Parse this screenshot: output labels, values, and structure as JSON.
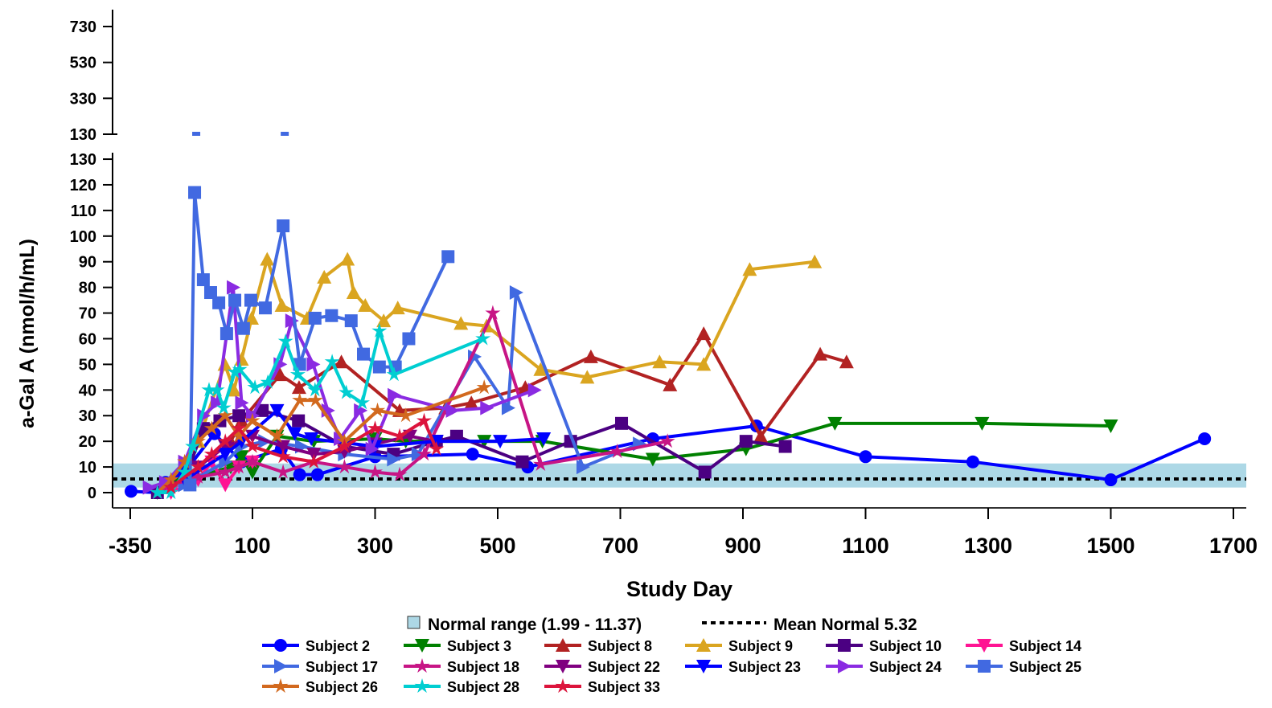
{
  "chart_data": {
    "type": "line",
    "xlabel": "Study Day",
    "ylabel": "a-Gal A (nmol/h/mL)",
    "x_ticks": [
      -350,
      100,
      300,
      500,
      700,
      900,
      1100,
      1300,
      1500,
      1700
    ],
    "y_ticks_lower": [
      0,
      10,
      20,
      30,
      40,
      50,
      60,
      70,
      80,
      90,
      100,
      110,
      120,
      130
    ],
    "y_ticks_upper": [
      130,
      330,
      530,
      730
    ],
    "ylim_lower": [
      0,
      130
    ],
    "ylim_upper": [
      130,
      730
    ],
    "x_axis_break": "between -350 and 100",
    "y_axis_break": "at 130",
    "grid": false,
    "legend_position": "bottom",
    "reference": {
      "normal_range": {
        "label": "Normal range (1.99 - 11.37)",
        "low": 1.99,
        "high": 11.37,
        "color": "#ADD8E6"
      },
      "mean_normal": {
        "label": "Mean Normal 5.32",
        "value": 5.32,
        "style": "dotted",
        "color": "#000000"
      }
    },
    "series": [
      {
        "name": "Subject 2",
        "color": "#0000FF",
        "marker": "circle",
        "points": [
          [
            -347,
            0.5
          ],
          [
            -250,
            0
          ],
          [
            -220,
            4
          ],
          [
            -150,
            8
          ],
          [
            -40,
            23
          ],
          [
            60,
            12
          ],
          [
            147,
            17
          ],
          [
            177,
            7
          ],
          [
            206,
            7
          ],
          [
            300,
            14
          ],
          [
            459,
            15
          ],
          [
            549,
            10
          ],
          [
            753,
            21
          ],
          [
            922,
            26
          ],
          [
            1100,
            14
          ],
          [
            1275,
            12
          ],
          [
            1500,
            5
          ],
          [
            1653,
            21
          ]
        ]
      },
      {
        "name": "Subject 3",
        "color": "#008000",
        "marker": "triangle-down",
        "points": [
          [
            -250,
            0
          ],
          [
            -200,
            3
          ],
          [
            20,
            10
          ],
          [
            60,
            14
          ],
          [
            100,
            8
          ],
          [
            140,
            22
          ],
          [
            200,
            20
          ],
          [
            300,
            21
          ],
          [
            350,
            20
          ],
          [
            478,
            20
          ],
          [
            573,
            20
          ],
          [
            753,
            13
          ],
          [
            905,
            17
          ],
          [
            1050,
            27
          ],
          [
            1290,
            27
          ],
          [
            1500,
            26
          ]
        ]
      },
      {
        "name": "Subject 8",
        "color": "#B22222",
        "marker": "triangle-up",
        "points": [
          [
            20,
            20
          ],
          [
            60,
            28
          ],
          [
            145,
            46
          ],
          [
            176,
            41
          ],
          [
            245,
            51
          ],
          [
            340,
            32
          ],
          [
            415,
            33
          ],
          [
            457,
            35
          ],
          [
            545,
            41
          ],
          [
            652,
            53
          ],
          [
            781,
            42
          ],
          [
            836,
            62
          ],
          [
            929,
            22
          ],
          [
            1026,
            54
          ],
          [
            1069,
            51
          ]
        ]
      },
      {
        "name": "Subject 9",
        "color": "#DAA520",
        "marker": "triangle-up",
        "points": [
          [
            -100,
            20
          ],
          [
            -2,
            50
          ],
          [
            32,
            40
          ],
          [
            60,
            52
          ],
          [
            97,
            68
          ],
          [
            124,
            91
          ],
          [
            148,
            73
          ],
          [
            189,
            68
          ],
          [
            217,
            84
          ],
          [
            255,
            91
          ],
          [
            265,
            78
          ],
          [
            284,
            73
          ],
          [
            314,
            67
          ],
          [
            337,
            72
          ],
          [
            440,
            66
          ],
          [
            482,
            65
          ],
          [
            570,
            48
          ],
          [
            646,
            45
          ],
          [
            764,
            51
          ],
          [
            836,
            50
          ],
          [
            911,
            87
          ],
          [
            1017,
            90
          ]
        ]
      },
      {
        "name": "Subject 10",
        "color": "#4B0082",
        "marker": "square",
        "points": [
          [
            -250,
            0
          ],
          [
            -150,
            5
          ],
          [
            -81,
            25
          ],
          [
            -20,
            28
          ],
          [
            50,
            30
          ],
          [
            116,
            32
          ],
          [
            175,
            28
          ],
          [
            250,
            18
          ],
          [
            330,
            15
          ],
          [
            400,
            20
          ],
          [
            433,
            22
          ],
          [
            540,
            12
          ],
          [
            619,
            20
          ],
          [
            702,
            27
          ],
          [
            838,
            8
          ],
          [
            905,
            20
          ],
          [
            969,
            18
          ]
        ]
      },
      {
        "name": "Subject 14",
        "color": "#FF1493",
        "marker": "triangle-down",
        "points": [
          [
            -200,
            0
          ],
          [
            -100,
            5
          ],
          [
            -50,
            12
          ],
          [
            0,
            3
          ],
          [
            50,
            10
          ],
          [
            100,
            12
          ]
        ]
      },
      {
        "name": "Subject 17",
        "color": "#4169E1",
        "marker": "triangle-right",
        "points": [
          [
            -150,
            3
          ],
          [
            0,
            12
          ],
          [
            60,
            18
          ],
          [
            120,
            20
          ],
          [
            180,
            18
          ],
          [
            250,
            15
          ],
          [
            330,
            13
          ],
          [
            370,
            15
          ],
          [
            462,
            53
          ],
          [
            517,
            33
          ],
          [
            530,
            78
          ],
          [
            639,
            10
          ],
          [
            731,
            19
          ]
        ]
      },
      {
        "name": "Subject 18",
        "color": "#C71585",
        "marker": "star",
        "points": [
          [
            -250,
            0
          ],
          [
            -200,
            3
          ],
          [
            -100,
            6
          ],
          [
            0,
            8
          ],
          [
            50,
            10
          ],
          [
            100,
            12
          ],
          [
            150,
            8
          ],
          [
            200,
            12
          ],
          [
            250,
            10
          ],
          [
            300,
            8
          ],
          [
            340,
            7
          ],
          [
            380,
            15
          ],
          [
            492,
            70
          ],
          [
            570,
            11
          ],
          [
            695,
            16
          ],
          [
            777,
            20
          ]
        ]
      },
      {
        "name": "Subject 22",
        "color": "#800080",
        "marker": "triangle-down",
        "points": [
          [
            -200,
            2
          ],
          [
            -100,
            10
          ],
          [
            0,
            18
          ],
          [
            100,
            22
          ],
          [
            150,
            18
          ],
          [
            200,
            15
          ],
          [
            250,
            16
          ],
          [
            300,
            19
          ],
          [
            357,
            22
          ],
          [
            400,
            20
          ]
        ]
      },
      {
        "name": "Subject 23",
        "color": "#0000FF",
        "marker": "triangle-down",
        "points": [
          [
            -150,
            5
          ],
          [
            0,
            15
          ],
          [
            60,
            20
          ],
          [
            140,
            32
          ],
          [
            169,
            23
          ],
          [
            196,
            21
          ],
          [
            300,
            18
          ],
          [
            400,
            20
          ],
          [
            504,
            20
          ],
          [
            575,
            21
          ]
        ]
      },
      {
        "name": "Subject 24",
        "color": "#8A2BE2",
        "marker": "triangle-right",
        "points": [
          [
            -280,
            2
          ],
          [
            -220,
            4
          ],
          [
            -150,
            12
          ],
          [
            -80,
            30
          ],
          [
            -30,
            35
          ],
          [
            29,
            80
          ],
          [
            60,
            35
          ],
          [
            100,
            30
          ],
          [
            145,
            50
          ],
          [
            164,
            67
          ],
          [
            199,
            50
          ],
          [
            223,
            32
          ],
          [
            243,
            21
          ],
          [
            276,
            32
          ],
          [
            295,
            17
          ],
          [
            331,
            38
          ],
          [
            426,
            32
          ],
          [
            482,
            33
          ],
          [
            560,
            40
          ]
        ]
      },
      {
        "name": "Subject 25",
        "color": "#4169E1",
        "marker": "square",
        "points": [
          [
            -130,
            3
          ],
          [
            -113,
            117
          ],
          [
            -81,
            83
          ],
          [
            -54,
            78
          ],
          [
            -24,
            74
          ],
          [
            5,
            62
          ],
          [
            35,
            75
          ],
          [
            67,
            64
          ],
          [
            94,
            75
          ],
          [
            121,
            72
          ],
          [
            150,
            104
          ],
          [
            177,
            50
          ],
          [
            202,
            68
          ],
          [
            229,
            69
          ],
          [
            261,
            67
          ],
          [
            281,
            54
          ],
          [
            307,
            49
          ],
          [
            333,
            49
          ],
          [
            355,
            60
          ],
          [
            419,
            92
          ]
        ]
      },
      {
        "name": "Subject 26",
        "color": "#D2691E",
        "marker": "star",
        "points": [
          [
            -250,
            0
          ],
          [
            -200,
            5
          ],
          [
            -150,
            12
          ],
          [
            -100,
            20
          ],
          [
            -50,
            25
          ],
          [
            0,
            30
          ],
          [
            50,
            22
          ],
          [
            100,
            28
          ],
          [
            140,
            22
          ],
          [
            177,
            36
          ],
          [
            203,
            36
          ],
          [
            250,
            20
          ],
          [
            304,
            32
          ],
          [
            350,
            30
          ],
          [
            478,
            41
          ]
        ]
      },
      {
        "name": "Subject 28",
        "color": "#00CED1",
        "marker": "star",
        "points": [
          [
            -250,
            0
          ],
          [
            -200,
            0
          ],
          [
            -150,
            8
          ],
          [
            -120,
            18
          ],
          [
            -60,
            40
          ],
          [
            -30,
            40
          ],
          [
            -6,
            33
          ],
          [
            35,
            47
          ],
          [
            53,
            48
          ],
          [
            104,
            41
          ],
          [
            125,
            43
          ],
          [
            154,
            59
          ],
          [
            174,
            46
          ],
          [
            202,
            40
          ],
          [
            230,
            51
          ],
          [
            253,
            39
          ],
          [
            279,
            35
          ],
          [
            307,
            63
          ],
          [
            331,
            46
          ],
          [
            476,
            60
          ]
        ]
      },
      {
        "name": "Subject 33",
        "color": "#DC143C",
        "marker": "star",
        "points": [
          [
            -200,
            2
          ],
          [
            -100,
            10
          ],
          [
            -50,
            15
          ],
          [
            0,
            20
          ],
          [
            50,
            25
          ],
          [
            100,
            18
          ],
          [
            150,
            14
          ],
          [
            200,
            12
          ],
          [
            250,
            18
          ],
          [
            300,
            25
          ],
          [
            340,
            22
          ],
          [
            380,
            28
          ],
          [
            400,
            17
          ]
        ]
      }
    ]
  }
}
